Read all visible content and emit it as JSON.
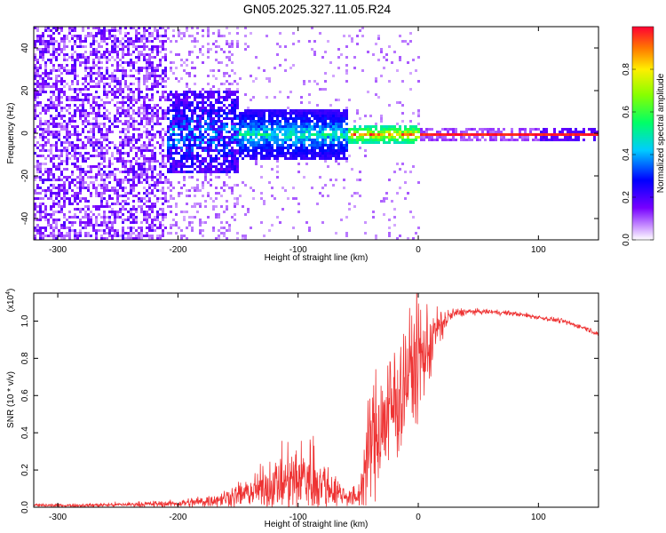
{
  "title": "GN05.2025.327.11.05.R24",
  "colors": {
    "snr_line": "#ee3333",
    "frame": "#000000",
    "spectrogram_low": "#5500ee",
    "background": "#ffffff"
  },
  "chart_data": [
    {
      "type": "heatmap",
      "name": "spectrogram",
      "xlabel": "Height of straight line (km)",
      "ylabel": "Frequency (Hz)",
      "xlim": [
        -320,
        150
      ],
      "ylim": [
        -50,
        50
      ],
      "xticks": [
        -300,
        -200,
        -100,
        0,
        100
      ],
      "xtick_labels": [
        "-300",
        "-200",
        "-100",
        "0",
        "100"
      ],
      "yticks": [
        -40,
        -20,
        0,
        20,
        40
      ],
      "ytick_labels": [
        "-40",
        "-20",
        "0",
        "20",
        "40"
      ],
      "colorbar": {
        "label": "Normalized spectral amplitude",
        "range": [
          0,
          1
        ],
        "ticks": [
          0.0,
          0.2,
          0.4,
          0.6,
          0.8
        ],
        "tick_labels": [
          "0.0",
          "0.2",
          "0.4",
          "0.6",
          "0.8"
        ],
        "colormap": "rainbow (purple = low, red = high)"
      },
      "regions": [
        {
          "x_range": [
            -320,
            -210
          ],
          "freq_spread": [
            -50,
            50
          ],
          "amplitude": [
            0.05,
            0.2
          ],
          "description": "broadband noise"
        },
        {
          "x_range": [
            -210,
            -150
          ],
          "freq_spread": [
            -18,
            20
          ],
          "amplitude": [
            0.1,
            0.45
          ]
        },
        {
          "x_range": [
            -150,
            -60
          ],
          "freq_spread": [
            -12,
            12
          ],
          "amplitude": [
            0.15,
            0.55
          ]
        },
        {
          "x_range": [
            -60,
            0
          ],
          "freq_spread": [
            -4,
            4
          ],
          "amplitude": [
            0.4,
            0.95
          ]
        },
        {
          "x_range": [
            0,
            150
          ],
          "freq_spread": [
            -1,
            1
          ],
          "amplitude": [
            0.9,
            1.0
          ],
          "description": "narrow carrier line near 0 Hz"
        }
      ]
    },
    {
      "type": "line",
      "name": "snr",
      "xlabel": "Height of straight line (km)",
      "ylabel": "SNR (10 * v/v)",
      "y_multiplier_label": "(x10",
      "y_multiplier_exponent": "4",
      "y_multiplier_close": ")",
      "xlim": [
        -320,
        150
      ],
      "ylim": [
        0,
        1.15
      ],
      "xticks": [
        -300,
        -200,
        -100,
        0,
        100
      ],
      "xtick_labels": [
        "-300",
        "-200",
        "-100",
        "0",
        "100"
      ],
      "yticks": [
        0.0,
        0.2,
        0.4,
        0.6,
        0.8,
        1.0
      ],
      "ytick_labels": [
        "0.0",
        "0.2",
        "0.4",
        "0.6",
        "0.8",
        "1.0"
      ],
      "series": [
        {
          "name": "SNR",
          "x": [
            -320,
            -280,
            -240,
            -200,
            -180,
            -160,
            -140,
            -120,
            -100,
            -90,
            -80,
            -70,
            -60,
            -50,
            -45,
            -40,
            -35,
            -30,
            -25,
            -20,
            -15,
            -10,
            -5,
            0,
            5,
            10,
            15,
            20,
            25,
            30,
            40,
            60,
            80,
            100,
            120,
            140,
            150
          ],
          "mean": [
            0.01,
            0.01,
            0.015,
            0.02,
            0.03,
            0.05,
            0.08,
            0.12,
            0.15,
            0.17,
            0.13,
            0.09,
            0.06,
            0.05,
            0.18,
            0.35,
            0.4,
            0.45,
            0.5,
            0.55,
            0.62,
            0.7,
            0.75,
            0.8,
            0.82,
            0.88,
            0.95,
            0.98,
            1.02,
            1.04,
            1.05,
            1.05,
            1.04,
            1.02,
            1.0,
            0.96,
            0.93
          ],
          "noise": [
            0.006,
            0.006,
            0.008,
            0.012,
            0.02,
            0.03,
            0.05,
            0.09,
            0.12,
            0.14,
            0.1,
            0.06,
            0.03,
            0.04,
            0.12,
            0.18,
            0.2,
            0.22,
            0.22,
            0.24,
            0.22,
            0.2,
            0.2,
            0.2,
            0.18,
            0.12,
            0.08,
            0.05,
            0.03,
            0.02,
            0.01,
            0.008,
            0.008,
            0.008,
            0.008,
            0.008,
            0.008
          ]
        }
      ]
    }
  ]
}
